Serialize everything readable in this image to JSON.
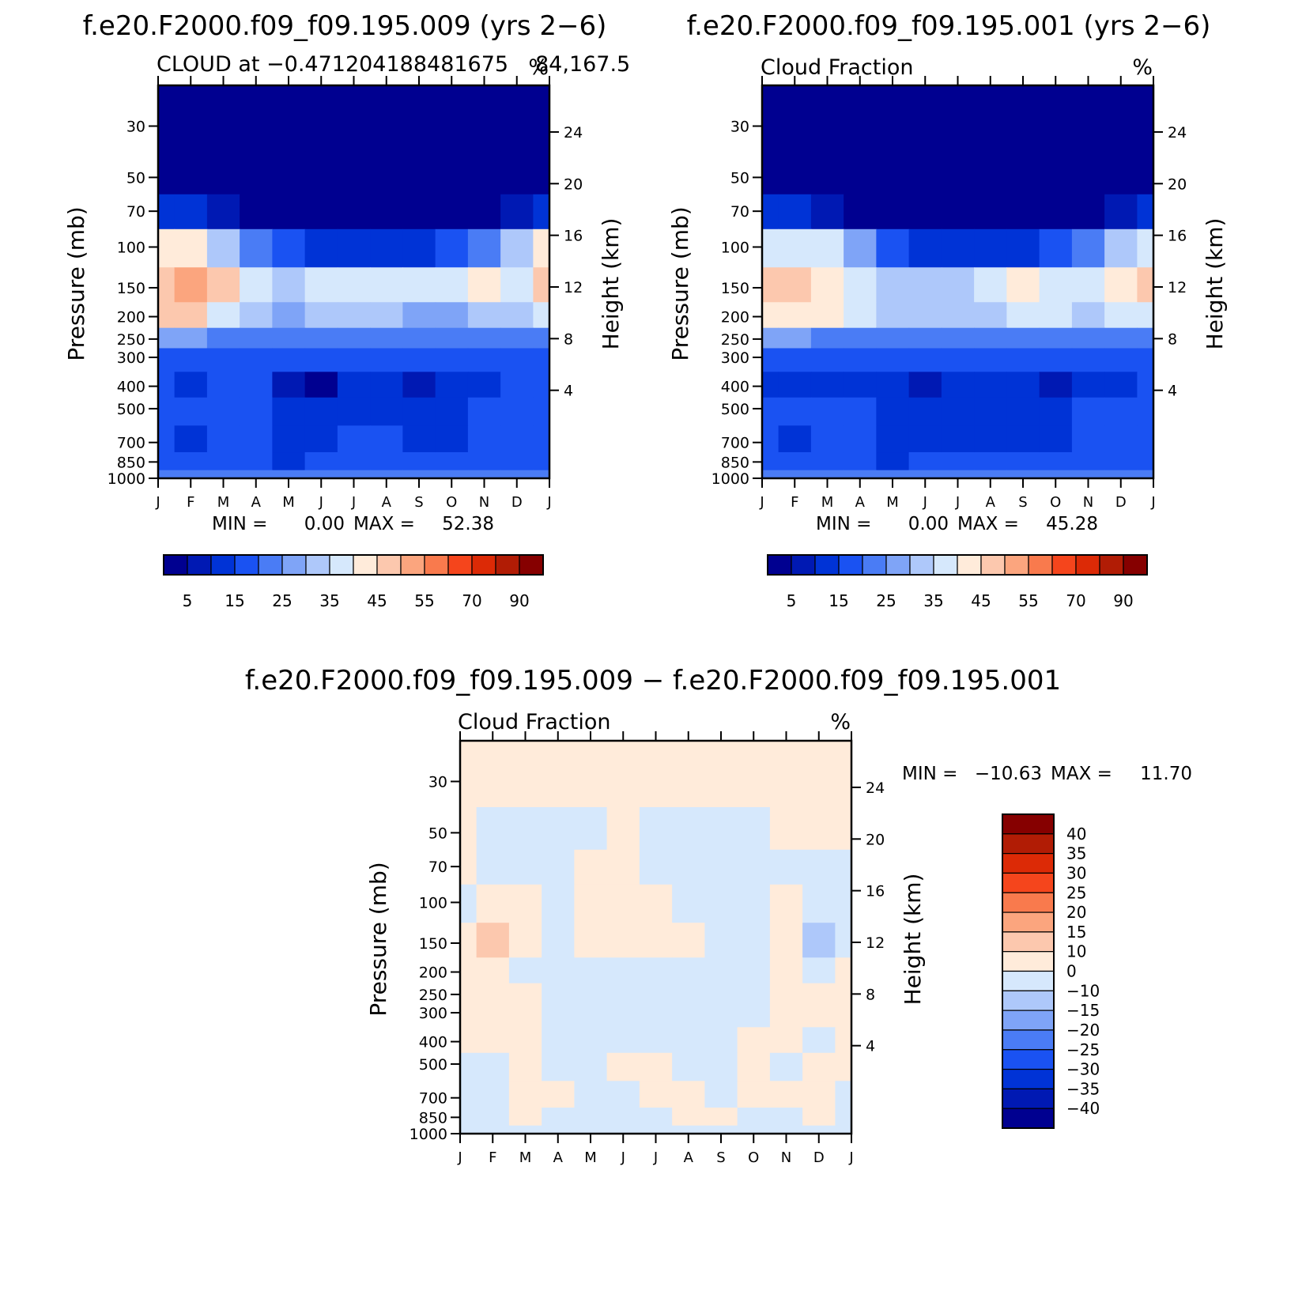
{
  "colors": {
    "abs_palette": [
      "#000090",
      "#0019B3",
      "#0033D6",
      "#1A52F2",
      "#4A7CF5",
      "#7FA4F7",
      "#AEC8FA",
      "#D6E8FC",
      "#FFEBDA",
      "#FCC8AE",
      "#FBA57E",
      "#F97A4D",
      "#F5451C",
      "#DC2A06",
      "#B11C05",
      "#860000"
    ],
    "diff_palette": [
      "#000090",
      "#0019B3",
      "#0033D6",
      "#1A52F2",
      "#4A7CF5",
      "#7FA4F7",
      "#AEC8FA",
      "#D6E8FC",
      "#FFEBDA",
      "#FCC8AE",
      "#FBA57E",
      "#F97A4D",
      "#F5451C",
      "#DC2A06",
      "#B11C05",
      "#860000"
    ]
  },
  "chart_data": [
    {
      "type": "heatmap",
      "title": "f.e20.F2000.f09_f09.195.009 (yrs 2−6)",
      "subtitle_left": "CLOUD at −0.471204188481675",
      "subtitle_overlap": "84,167.5",
      "units": "%",
      "ylabel": "Pressure (mb)",
      "ylabel_right": "Height (km)",
      "y_ticks": [
        "30",
        "50",
        "70",
        "100",
        "150",
        "200",
        "250",
        "300",
        "400",
        "500",
        "700",
        "850",
        "1000"
      ],
      "y_right_ticks": [
        "24",
        "20",
        "16",
        "12",
        "8",
        "4"
      ],
      "x_ticks": [
        "J",
        "F",
        "M",
        "A",
        "M",
        "J",
        "J",
        "A",
        "S",
        "O",
        "N",
        "D",
        "J"
      ],
      "min_label": "MIN =",
      "min_value": "0.00",
      "max_label": "MAX =",
      "max_value": "52.38",
      "colorbar_labels": [
        "5",
        "15",
        "25",
        "35",
        "45",
        "55",
        "70",
        "90"
      ],
      "levels": [
        30,
        50,
        70,
        100,
        150,
        200,
        250,
        300,
        400,
        500,
        700,
        850,
        1000
      ],
      "months": [
        "J",
        "F",
        "M",
        "A",
        "M",
        "J",
        "J",
        "A",
        "S",
        "O",
        "N",
        "D",
        "J"
      ],
      "values": [
        [
          0,
          0,
          0,
          0,
          0,
          0,
          0,
          0,
          0,
          0,
          0,
          0,
          0
        ],
        [
          0,
          0,
          0,
          0,
          0,
          0,
          0,
          0,
          0,
          0,
          0,
          0,
          0
        ],
        [
          5,
          5,
          3,
          1,
          0,
          0,
          0,
          0,
          0,
          0,
          2,
          4,
          5
        ],
        [
          35,
          38,
          28,
          18,
          12,
          7,
          5,
          5,
          7,
          12,
          18,
          28,
          35
        ],
        [
          42,
          48,
          42,
          30,
          28,
          30,
          32,
          30,
          30,
          34,
          38,
          30,
          40
        ],
        [
          40,
          44,
          34,
          26,
          24,
          26,
          27,
          26,
          24,
          22,
          26,
          28,
          32
        ],
        [
          20,
          22,
          18,
          16,
          16,
          16,
          17,
          17,
          16,
          15,
          15,
          16,
          18
        ],
        [
          13,
          14,
          13,
          12,
          11,
          11,
          11,
          12,
          12,
          11,
          11,
          12,
          13
        ],
        [
          10,
          7,
          10,
          10,
          3,
          2,
          6,
          8,
          4,
          6,
          8,
          10,
          10
        ],
        [
          14,
          11,
          12,
          11,
          9,
          7,
          8,
          9,
          8,
          9,
          11,
          12,
          14
        ],
        [
          13,
          9,
          12,
          10,
          8,
          8,
          10,
          10,
          8,
          9,
          10,
          11,
          13
        ],
        [
          12,
          12,
          11,
          10,
          9,
          11,
          12,
          12,
          11,
          10,
          10,
          11,
          12
        ],
        [
          15,
          15,
          15,
          15,
          15,
          15,
          15,
          15,
          15,
          15,
          15,
          15,
          15
        ]
      ]
    },
    {
      "type": "heatmap",
      "title": "f.e20.F2000.f09_f09.195.001 (yrs 2−6)",
      "subtitle_left": "Cloud Fraction",
      "units": "%",
      "ylabel": "Pressure (mb)",
      "ylabel_right": "Height (km)",
      "y_ticks": [
        "30",
        "50",
        "70",
        "100",
        "150",
        "200",
        "250",
        "300",
        "400",
        "500",
        "700",
        "850",
        "1000"
      ],
      "y_right_ticks": [
        "24",
        "20",
        "16",
        "12",
        "8",
        "4"
      ],
      "x_ticks": [
        "J",
        "F",
        "M",
        "A",
        "M",
        "J",
        "J",
        "A",
        "S",
        "O",
        "N",
        "D",
        "J"
      ],
      "min_label": "MIN =",
      "min_value": "0.00",
      "max_label": "MAX =",
      "max_value": "45.28",
      "colorbar_labels": [
        "5",
        "15",
        "25",
        "35",
        "45",
        "55",
        "70",
        "90"
      ],
      "levels": [
        30,
        50,
        70,
        100,
        150,
        200,
        250,
        300,
        400,
        500,
        700,
        850,
        1000
      ],
      "months": [
        "J",
        "F",
        "M",
        "A",
        "M",
        "J",
        "J",
        "A",
        "S",
        "O",
        "N",
        "D",
        "J"
      ],
      "values": [
        [
          0,
          0,
          0,
          0,
          0,
          0,
          0,
          0,
          0,
          0,
          0,
          0,
          0
        ],
        [
          0,
          0,
          0,
          0,
          0,
          0,
          0,
          0,
          0,
          0,
          0,
          0,
          0
        ],
        [
          5,
          5,
          3,
          1,
          0,
          0,
          0,
          0,
          0,
          0,
          2,
          4,
          5
        ],
        [
          34,
          34,
          30,
          20,
          12,
          7,
          5,
          5,
          7,
          12,
          18,
          26,
          32
        ],
        [
          41,
          41,
          38,
          32,
          28,
          28,
          29,
          32,
          38,
          34,
          30,
          36,
          42
        ],
        [
          36,
          38,
          35,
          30,
          26,
          26,
          27,
          28,
          34,
          30,
          28,
          30,
          33
        ],
        [
          20,
          20,
          18,
          16,
          16,
          16,
          17,
          17,
          16,
          15,
          15,
          16,
          18
        ],
        [
          12,
          13,
          12,
          12,
          11,
          11,
          11,
          12,
          12,
          11,
          11,
          12,
          13
        ],
        [
          9,
          8,
          9,
          5,
          8,
          3,
          7,
          9,
          8,
          3,
          7,
          9,
          10
        ],
        [
          13,
          10,
          11,
          11,
          9,
          7,
          8,
          9,
          8,
          9,
          11,
          12,
          13
        ],
        [
          12,
          9,
          11,
          10,
          8,
          8,
          9,
          9,
          8,
          9,
          10,
          11,
          12
        ],
        [
          11,
          11,
          11,
          10,
          9,
          10,
          11,
          12,
          11,
          10,
          10,
          11,
          11
        ],
        [
          15,
          15,
          15,
          15,
          15,
          15,
          15,
          15,
          15,
          15,
          15,
          15,
          15
        ]
      ]
    },
    {
      "type": "heatmap",
      "title": "f.e20.F2000.f09_f09.195.009 − f.e20.F2000.f09_f09.195.001",
      "subtitle_left": "Cloud Fraction",
      "units": "%",
      "ylabel": "Pressure (mb)",
      "ylabel_right": "Height (km)",
      "y_ticks": [
        "30",
        "50",
        "70",
        "100",
        "150",
        "200",
        "250",
        "300",
        "400",
        "500",
        "700",
        "850",
        "1000"
      ],
      "y_right_ticks": [
        "24",
        "20",
        "16",
        "12",
        "8",
        "4"
      ],
      "x_ticks": [
        "J",
        "F",
        "M",
        "A",
        "M",
        "J",
        "J",
        "A",
        "S",
        "O",
        "N",
        "D",
        "J"
      ],
      "min_label": "MIN =",
      "min_value": "−10.63",
      "max_label": "MAX =",
      "max_value": "11.70",
      "colorbar_labels": [
        "40",
        "35",
        "30",
        "25",
        "20",
        "15",
        "10",
        "0",
        "−10",
        "−15",
        "−20",
        "−25",
        "−30",
        "−35",
        "−40"
      ],
      "levels": [
        30,
        50,
        70,
        100,
        150,
        200,
        250,
        300,
        400,
        500,
        700,
        850,
        1000
      ],
      "months": [
        "J",
        "F",
        "M",
        "A",
        "M",
        "J",
        "J",
        "A",
        "S",
        "O",
        "N",
        "D",
        "J"
      ],
      "values": [
        [
          0.2,
          0.2,
          0.2,
          0.2,
          0.2,
          0.2,
          0.2,
          0.2,
          0.2,
          0.2,
          0.2,
          0.2,
          0.2
        ],
        [
          0.2,
          -0.3,
          -0.3,
          -0.3,
          -0.3,
          0.2,
          -0.3,
          -0.3,
          -0.3,
          -0.3,
          0.2,
          0.2,
          0.2
        ],
        [
          0.2,
          -0.3,
          -0.3,
          -0.3,
          0.2,
          0.2,
          -0.3,
          -0.3,
          -0.3,
          -0.3,
          -0.3,
          -0.3,
          -0.3
        ],
        [
          -0.3,
          0.5,
          0.5,
          -0.3,
          0.5,
          0.5,
          0.5,
          -0.3,
          -0.3,
          -0.3,
          0.5,
          -0.3,
          -0.3
        ],
        [
          0.5,
          11.7,
          0.5,
          -0.3,
          0.5,
          0.5,
          0.5,
          0.5,
          -0.3,
          -0.3,
          0.5,
          -10.6,
          -0.3
        ],
        [
          0.5,
          0.5,
          -0.3,
          -0.3,
          -0.3,
          -0.3,
          -0.3,
          -0.3,
          -0.3,
          -0.3,
          0.5,
          -0.3,
          0.5
        ],
        [
          0.5,
          0.5,
          0.5,
          -0.3,
          -0.3,
          -0.3,
          -0.3,
          -0.3,
          -0.3,
          -0.3,
          0.5,
          0.5,
          0.5
        ],
        [
          0.5,
          0.5,
          0.5,
          -0.3,
          -0.3,
          -0.3,
          -0.3,
          -0.3,
          -0.3,
          -0.3,
          0.5,
          0.5,
          0.5
        ],
        [
          0.5,
          0.5,
          0.5,
          -0.3,
          -0.3,
          -0.3,
          -0.3,
          -0.3,
          -0.3,
          0.5,
          0.5,
          -0.3,
          0.5
        ],
        [
          -0.3,
          -0.3,
          0.5,
          -0.3,
          -0.3,
          0.5,
          0.5,
          -0.3,
          -0.3,
          0.5,
          -0.3,
          0.5,
          0.5
        ],
        [
          -0.3,
          -0.3,
          0.5,
          0.5,
          -0.3,
          -0.3,
          0.5,
          0.5,
          -0.3,
          0.5,
          0.5,
          0.5,
          -0.3
        ],
        [
          -0.3,
          -0.3,
          0.5,
          -0.3,
          -0.3,
          -0.3,
          -0.3,
          0.5,
          0.5,
          -0.3,
          -0.3,
          0.5,
          -0.3
        ],
        [
          -0.3,
          -0.3,
          -0.3,
          -0.3,
          -0.3,
          -0.3,
          -0.3,
          -0.3,
          -0.3,
          -0.3,
          -0.3,
          -0.3,
          -0.3
        ]
      ]
    }
  ]
}
